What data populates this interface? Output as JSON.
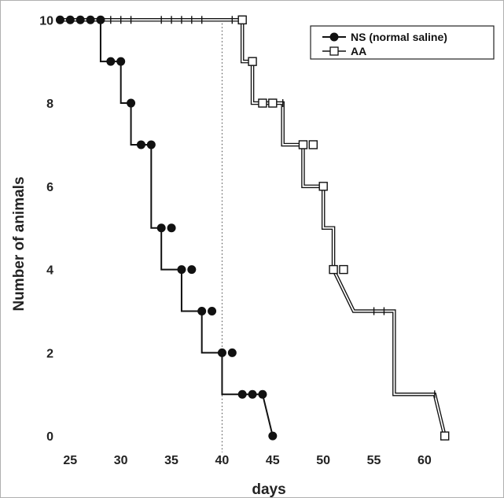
{
  "chart_data": {
    "type": "line",
    "title": "",
    "xlabel": "days",
    "ylabel": "Number of  animals",
    "xlim": [
      23.5,
      63.5
    ],
    "ylim": [
      -0.3,
      10.1
    ],
    "xticks": [
      25,
      30,
      35,
      40,
      45,
      50,
      55,
      60
    ],
    "yticks": [
      0,
      2,
      4,
      6,
      8,
      10
    ],
    "reference_line": {
      "x": 40,
      "style": "dotted"
    },
    "legend_position": "top-right",
    "grid": false,
    "series": [
      {
        "name": "NS (normal saline)",
        "marker": "filled-circle",
        "step_x": [
          24,
          28,
          28,
          29,
          29,
          30,
          30,
          31,
          31,
          32,
          32,
          33,
          33,
          34,
          34,
          36,
          36,
          38,
          38,
          40,
          40,
          42,
          42,
          44,
          44,
          45
        ],
        "step_y": [
          10,
          10,
          9,
          9,
          9,
          9,
          8,
          8,
          7,
          7,
          7,
          7,
          5,
          5,
          4,
          4,
          3,
          3,
          2,
          2,
          1,
          1,
          1,
          1,
          1,
          0
        ],
        "points": [
          [
            24,
            10
          ],
          [
            25,
            10
          ],
          [
            26,
            10
          ],
          [
            27,
            10
          ],
          [
            28,
            10
          ],
          [
            29,
            9
          ],
          [
            30,
            9
          ],
          [
            31,
            8
          ],
          [
            32,
            7
          ],
          [
            33,
            7
          ],
          [
            34,
            5
          ],
          [
            35,
            5
          ],
          [
            36,
            4
          ],
          [
            37,
            4
          ],
          [
            38,
            3
          ],
          [
            39,
            3
          ],
          [
            40,
            2
          ],
          [
            41,
            2
          ],
          [
            42,
            1
          ],
          [
            43,
            1
          ],
          [
            44,
            1
          ],
          [
            45,
            0
          ]
        ]
      },
      {
        "name": "AA",
        "marker": "open-square",
        "step_x": [
          24,
          42,
          42,
          43,
          43,
          44,
          44,
          46,
          46,
          48,
          48,
          50,
          50,
          51,
          51,
          53,
          53,
          57,
          57,
          61,
          61,
          62
        ],
        "step_y": [
          10,
          10,
          9,
          9,
          8,
          8,
          8,
          8,
          7,
          7,
          6,
          6,
          5,
          5,
          4,
          3,
          3,
          3,
          1,
          1,
          1,
          0
        ],
        "points": [
          [
            42,
            10
          ],
          [
            43,
            9
          ],
          [
            44,
            8
          ],
          [
            45,
            8
          ],
          [
            48,
            7
          ],
          [
            49,
            7
          ],
          [
            50,
            6
          ],
          [
            51,
            4
          ],
          [
            52,
            4
          ],
          [
            62,
            0
          ]
        ],
        "censor_ticks": [
          [
            28,
            10
          ],
          [
            29,
            10
          ],
          [
            30,
            10
          ],
          [
            31,
            10
          ],
          [
            34,
            10
          ],
          [
            35,
            10
          ],
          [
            36,
            10
          ],
          [
            37,
            10
          ],
          [
            38,
            10
          ],
          [
            41,
            10
          ],
          [
            44,
            8
          ],
          [
            46,
            8
          ],
          [
            48,
            7
          ],
          [
            49,
            7
          ],
          [
            50,
            6
          ],
          [
            51,
            4
          ],
          [
            52,
            4
          ],
          [
            55,
            3
          ],
          [
            56,
            3
          ],
          [
            61,
            1
          ]
        ]
      }
    ]
  },
  "colors": {
    "line": "#111111",
    "axis": "#222222",
    "border": "#999999",
    "background": "#ffffff"
  }
}
